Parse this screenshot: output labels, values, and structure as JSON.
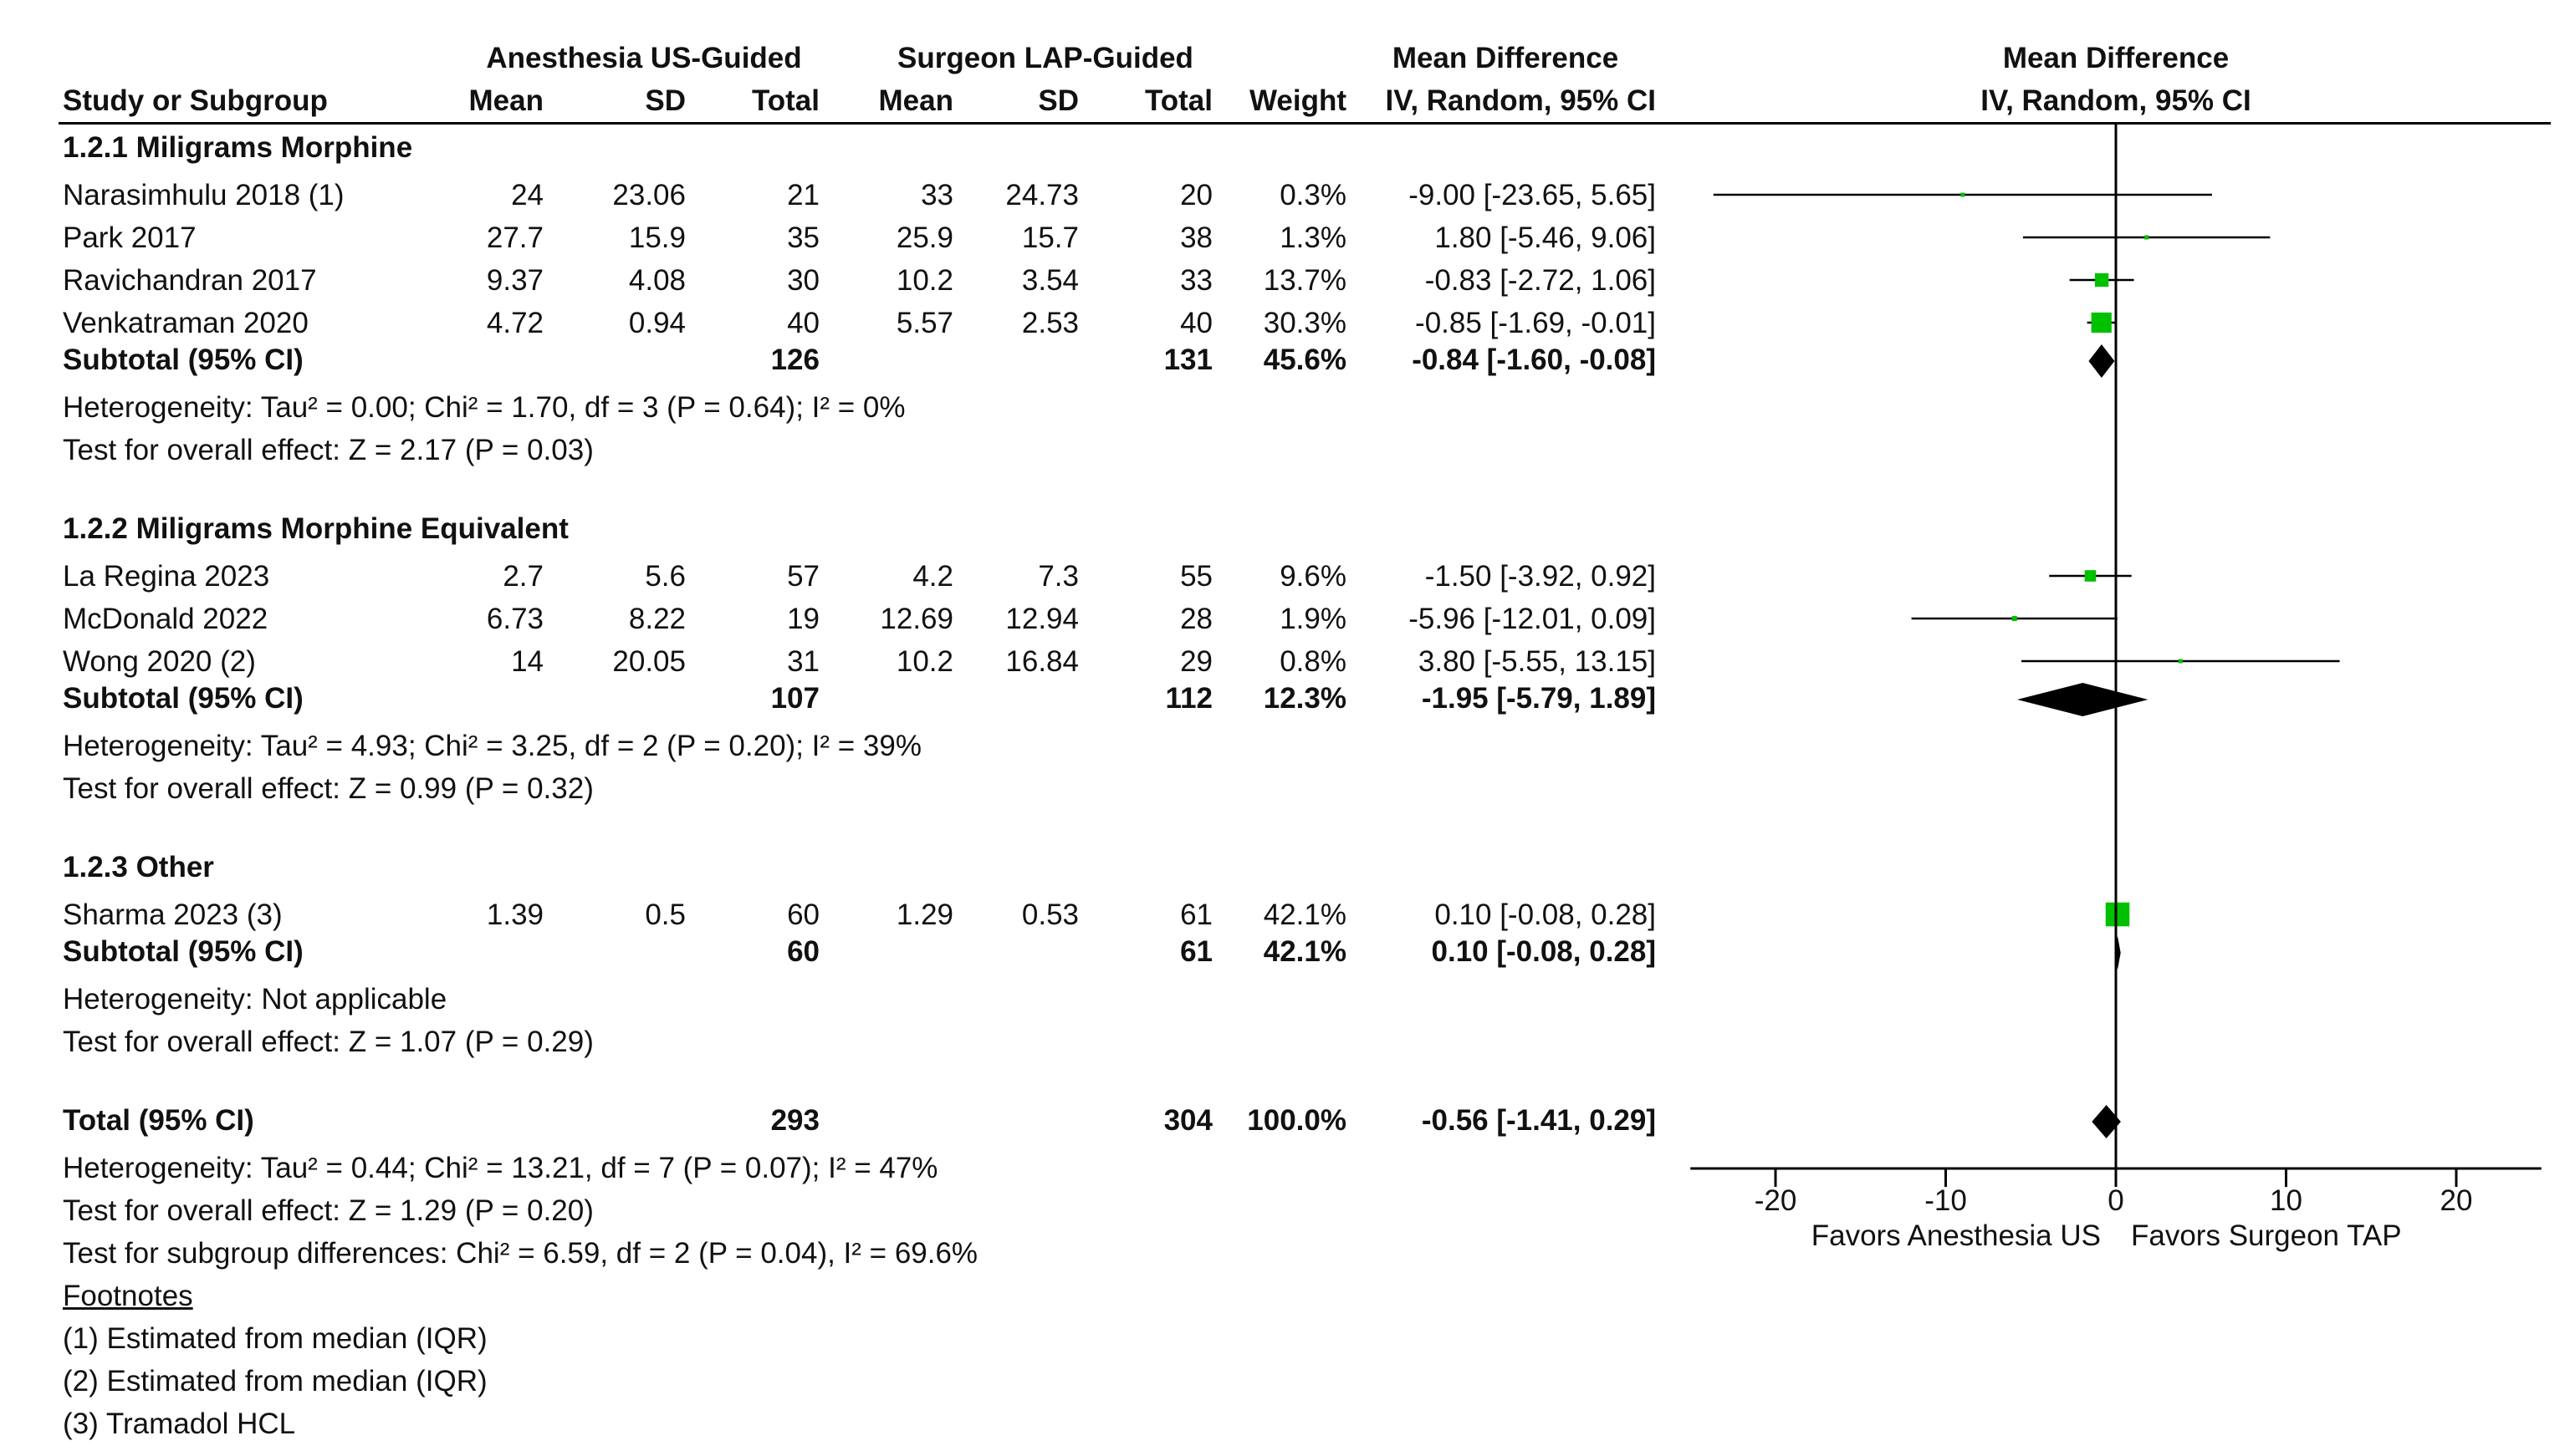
{
  "headers": {
    "group1": "Anesthesia US-Guided",
    "group2": "Surgeon LAP-Guided",
    "md": "Mean Difference",
    "md_plot": "Mean Difference",
    "study": "Study or Subgroup",
    "mean1": "Mean",
    "sd1": "SD",
    "total1": "Total",
    "mean2": "Mean",
    "sd2": "SD",
    "total2": "Total",
    "weight": "Weight",
    "method": "IV, Random, 95% CI",
    "method_plot": "IV, Random, 95% CI"
  },
  "chart_data": {
    "type": "forest",
    "title": "Mean Difference IV, Random, 95% CI",
    "xlim": [
      -25,
      25
    ],
    "ticks": [
      -20,
      -10,
      0,
      10,
      20
    ],
    "tick_labels": [
      "-20",
      "-10",
      "0",
      "10",
      "20"
    ],
    "favors_left": "Favors Anesthesia US",
    "favors_right": "Favors Surgeon TAP",
    "subgroups": [
      {
        "title": "1.2.1 Miligrams Morphine",
        "studies": [
          {
            "name": "Narasimhulu 2018 (1)",
            "mean1": "24",
            "sd1": "23.06",
            "n1": "21",
            "mean2": "33",
            "sd2": "24.73",
            "n2": "20",
            "weight": "0.3%",
            "ci_text": "-9.00 [-23.65, 5.65]",
            "md": -9.0,
            "lo": -23.65,
            "hi": 5.65,
            "w": 0.3
          },
          {
            "name": "Park 2017",
            "mean1": "27.7",
            "sd1": "15.9",
            "n1": "35",
            "mean2": "25.9",
            "sd2": "15.7",
            "n2": "38",
            "weight": "1.3%",
            "ci_text": "1.80 [-5.46, 9.06]",
            "md": 1.8,
            "lo": -5.46,
            "hi": 9.06,
            "w": 1.3
          },
          {
            "name": "Ravichandran 2017",
            "mean1": "9.37",
            "sd1": "4.08",
            "n1": "30",
            "mean2": "10.2",
            "sd2": "3.54",
            "n2": "33",
            "weight": "13.7%",
            "ci_text": "-0.83 [-2.72, 1.06]",
            "md": -0.83,
            "lo": -2.72,
            "hi": 1.06,
            "w": 13.7
          },
          {
            "name": "Venkatraman 2020",
            "mean1": "4.72",
            "sd1": "0.94",
            "n1": "40",
            "mean2": "5.57",
            "sd2": "2.53",
            "n2": "40",
            "weight": "30.3%",
            "ci_text": "-0.85 [-1.69, -0.01]",
            "md": -0.85,
            "lo": -1.69,
            "hi": -0.01,
            "w": 30.3
          }
        ],
        "subtotal": {
          "label": "Subtotal (95% CI)",
          "n1": "126",
          "n2": "131",
          "weight": "45.6%",
          "ci_text": "-0.84 [-1.60, -0.08]",
          "md": -0.84,
          "lo": -1.6,
          "hi": -0.08
        },
        "heterogeneity": "Heterogeneity: Tau² = 0.00; Chi² = 1.70, df = 3 (P = 0.64); I² = 0%",
        "overall": "Test for overall effect: Z = 2.17 (P = 0.03)"
      },
      {
        "title": "1.2.2 Miligrams Morphine Equivalent",
        "studies": [
          {
            "name": "La Regina 2023",
            "mean1": "2.7",
            "sd1": "5.6",
            "n1": "57",
            "mean2": "4.2",
            "sd2": "7.3",
            "n2": "55",
            "weight": "9.6%",
            "ci_text": "-1.50 [-3.92, 0.92]",
            "md": -1.5,
            "lo": -3.92,
            "hi": 0.92,
            "w": 9.6
          },
          {
            "name": "McDonald 2022",
            "mean1": "6.73",
            "sd1": "8.22",
            "n1": "19",
            "mean2": "12.69",
            "sd2": "12.94",
            "n2": "28",
            "weight": "1.9%",
            "ci_text": "-5.96 [-12.01, 0.09]",
            "md": -5.96,
            "lo": -12.01,
            "hi": 0.09,
            "w": 1.9
          },
          {
            "name": "Wong 2020 (2)",
            "mean1": "14",
            "sd1": "20.05",
            "n1": "31",
            "mean2": "10.2",
            "sd2": "16.84",
            "n2": "29",
            "weight": "0.8%",
            "ci_text": "3.80 [-5.55, 13.15]",
            "md": 3.8,
            "lo": -5.55,
            "hi": 13.15,
            "w": 0.8
          }
        ],
        "subtotal": {
          "label": "Subtotal (95% CI)",
          "n1": "107",
          "n2": "112",
          "weight": "12.3%",
          "ci_text": "-1.95 [-5.79, 1.89]",
          "md": -1.95,
          "lo": -5.79,
          "hi": 1.89
        },
        "heterogeneity": "Heterogeneity: Tau² = 4.93; Chi² = 3.25, df = 2 (P = 0.20); I² = 39%",
        "overall": "Test for overall effect: Z = 0.99 (P = 0.32)"
      },
      {
        "title": "1.2.3 Other",
        "studies": [
          {
            "name": "Sharma 2023 (3)",
            "mean1": "1.39",
            "sd1": "0.5",
            "n1": "60",
            "mean2": "1.29",
            "sd2": "0.53",
            "n2": "61",
            "weight": "42.1%",
            "ci_text": "0.10 [-0.08, 0.28]",
            "md": 0.1,
            "lo": -0.08,
            "hi": 0.28,
            "w": 42.1
          }
        ],
        "subtotal": {
          "label": "Subtotal (95% CI)",
          "n1": "60",
          "n2": "61",
          "weight": "42.1%",
          "ci_text": "0.10 [-0.08, 0.28]",
          "md": 0.1,
          "lo": -0.08,
          "hi": 0.28
        },
        "heterogeneity": "Heterogeneity: Not applicable",
        "overall": "Test for overall effect: Z = 1.07 (P = 0.29)"
      }
    ],
    "total": {
      "label": "Total (95% CI)",
      "n1": "293",
      "n2": "304",
      "weight": "100.0%",
      "ci_text": "-0.56 [-1.41, 0.29]",
      "md": -0.56,
      "lo": -1.41,
      "hi": 0.29
    },
    "total_heterogeneity": "Heterogeneity: Tau² = 0.44; Chi² = 13.21, df = 7 (P = 0.07); I² = 47%",
    "total_overall": "Test for overall effect: Z = 1.29 (P = 0.20)",
    "subgroup_diff": "Test for subgroup differences: Chi² = 6.59, df = 2 (P = 0.04), I² = 69.6%"
  },
  "footnotes": {
    "title": "Footnotes",
    "items": [
      "(1) Estimated from median (IQR)",
      "(2) Estimated from median (IQR)",
      "(3) Tramadol HCL"
    ]
  },
  "colors": {
    "marker": "#00c000",
    "line": "#000000",
    "diamond": "#000000"
  }
}
